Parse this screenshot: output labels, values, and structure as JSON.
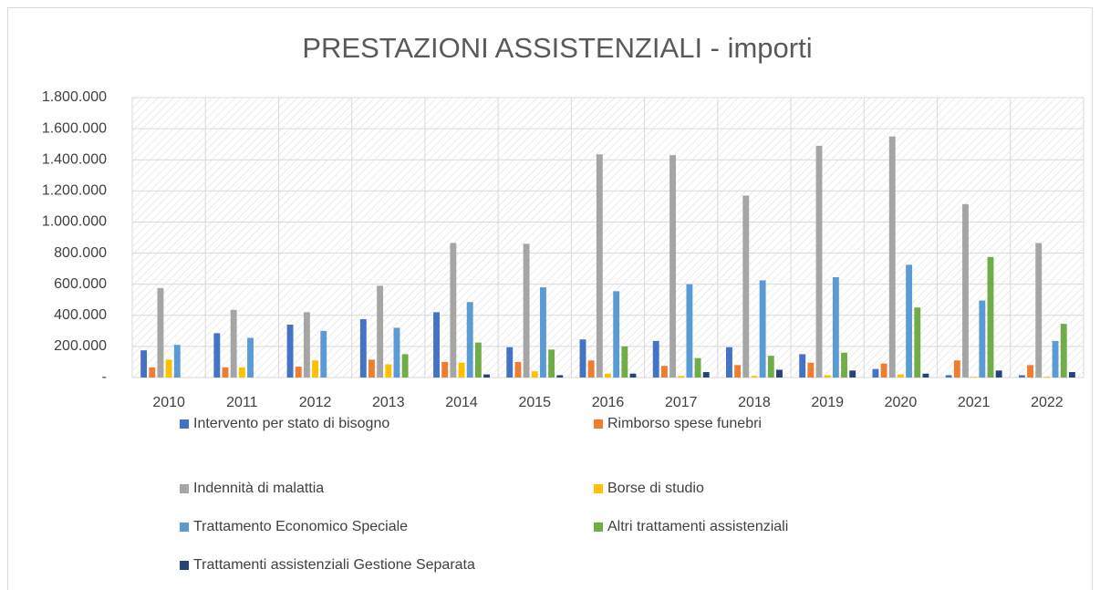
{
  "chart_data": {
    "type": "bar",
    "title": "PRESTAZIONI ASSISTENZIALI - importi",
    "categories": [
      "2010",
      "2011",
      "2012",
      "2013",
      "2014",
      "2015",
      "2016",
      "2017",
      "2018",
      "2019",
      "2020",
      "2021",
      "2022"
    ],
    "series": [
      {
        "name": "Intervento per stato di bisogno",
        "color": "#4472c4",
        "values": [
          175000,
          285000,
          340000,
          375000,
          420000,
          195000,
          245000,
          235000,
          195000,
          150000,
          55000,
          15000,
          15000
        ]
      },
      {
        "name": "Rimborso spese funebri",
        "color": "#ed7d31",
        "values": [
          65000,
          65000,
          70000,
          115000,
          100000,
          100000,
          110000,
          75000,
          80000,
          95000,
          90000,
          110000,
          80000
        ]
      },
      {
        "name": "Indennità di malattia",
        "color": "#a5a5a5",
        "values": [
          575000,
          435000,
          420000,
          590000,
          865000,
          860000,
          1435000,
          1430000,
          1170000,
          1490000,
          1550000,
          1115000,
          865000
        ]
      },
      {
        "name": "Borse di studio",
        "color": "#ffc000",
        "values": [
          115000,
          65000,
          110000,
          85000,
          95000,
          40000,
          25000,
          10000,
          10000,
          15000,
          20000,
          5000,
          5000
        ]
      },
      {
        "name": "Trattamento Economico Speciale",
        "color": "#5b9bd5",
        "values": [
          210000,
          255000,
          300000,
          320000,
          485000,
          580000,
          555000,
          600000,
          625000,
          645000,
          725000,
          495000,
          235000
        ]
      },
      {
        "name": "Altri trattamenti assistenziali",
        "color": "#70ad47",
        "values": [
          0,
          0,
          0,
          150000,
          225000,
          180000,
          200000,
          125000,
          140000,
          160000,
          450000,
          775000,
          345000
        ]
      },
      {
        "name": "Trattamenti assistenziali Gestione Separata",
        "color": "#264478",
        "values": [
          0,
          0,
          0,
          0,
          20000,
          15000,
          25000,
          35000,
          50000,
          45000,
          25000,
          45000,
          35000
        ]
      }
    ],
    "ylim": [
      0,
      1800000
    ],
    "yticks": [
      {
        "value": 0,
        "label": "-"
      },
      {
        "value": 200000,
        "label": "200.000"
      },
      {
        "value": 400000,
        "label": "400.000"
      },
      {
        "value": 600000,
        "label": "600.000"
      },
      {
        "value": 800000,
        "label": "800.000"
      },
      {
        "value": 1000000,
        "label": "1.000.000"
      },
      {
        "value": 1200000,
        "label": "1.200.000"
      },
      {
        "value": 1400000,
        "label": "1.400.000"
      },
      {
        "value": 1600000,
        "label": "1.600.000"
      },
      {
        "value": 1800000,
        "label": "1.800.000"
      }
    ],
    "grid": true
  }
}
